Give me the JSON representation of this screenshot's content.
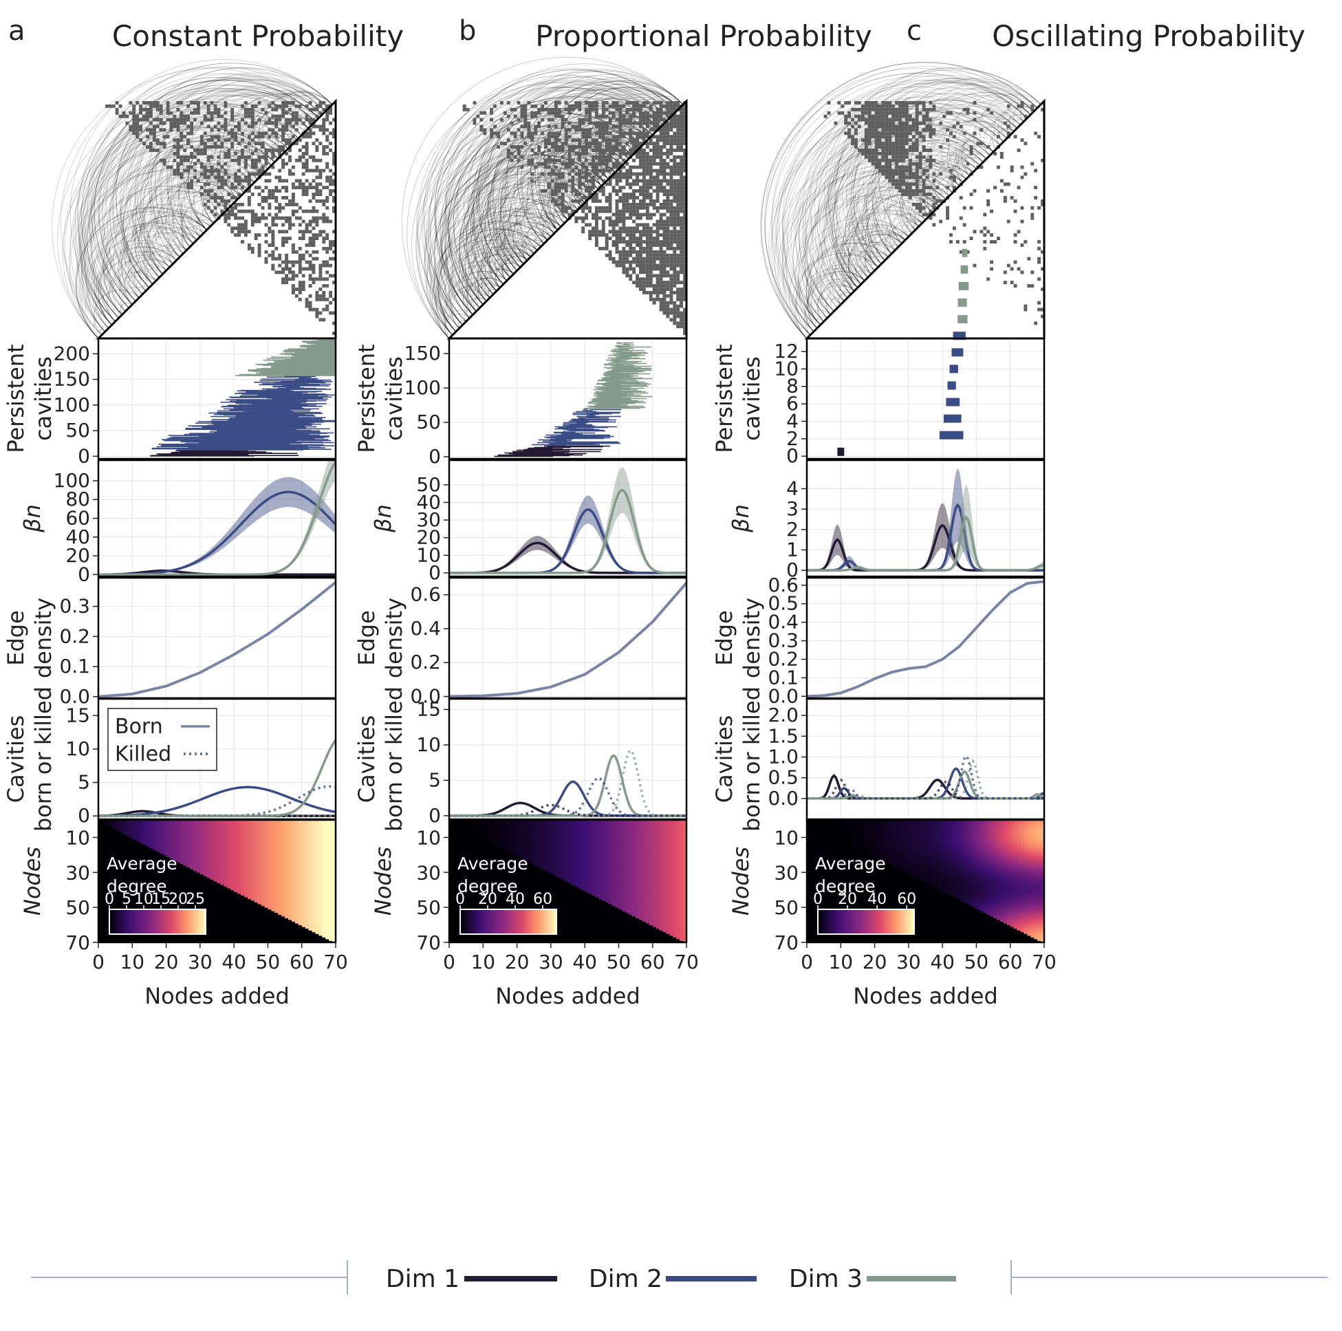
{
  "figure": {
    "panels": [
      {
        "letter": "a",
        "title": "Constant Probability"
      },
      {
        "letter": "b",
        "title": "Proportional Probability"
      },
      {
        "letter": "c",
        "title": "Oscillating Probability"
      }
    ],
    "row_labels": {
      "persistent": [
        "Persistent",
        "cavities"
      ],
      "betti": "βn",
      "edge": [
        "Edge",
        "density"
      ],
      "born": [
        "Cavities",
        "born or killed"
      ],
      "nodes": "Nodes"
    },
    "xlabel": "Nodes added",
    "x_ticks": [
      "0",
      "10",
      "20",
      "30",
      "40",
      "50",
      "60",
      "70"
    ],
    "node_ticks": [
      "10",
      "30",
      "50",
      "70"
    ],
    "colorbar_title": [
      "Average",
      "degree"
    ],
    "inset_legend": {
      "born": "Born",
      "killed": "Killed"
    },
    "dim_legend": [
      {
        "label": "Dim 1",
        "color": "#231a33"
      },
      {
        "label": "Dim 2",
        "color": "#3b4c85"
      },
      {
        "label": "Dim 3",
        "color": "#849a8b"
      }
    ]
  },
  "chart_data": [
    {
      "type": "composite",
      "title": "Constant Probability",
      "panel": "a",
      "x_range": [
        0,
        70
      ],
      "persistent_cavities": {
        "ylim": [
          -5,
          230
        ],
        "yticks": [
          "0",
          "50",
          "100",
          "150",
          "200"
        ],
        "bars": [
          {
            "dim": 1,
            "count": 12,
            "start_range": [
              10,
              30
            ],
            "end_range": [
              36,
              60
            ]
          },
          {
            "dim": 2,
            "count": 145,
            "start_range": [
              14,
              62
            ],
            "end_range": [
              55,
              70
            ]
          },
          {
            "dim": 3,
            "count": 70,
            "start_range": [
              40,
              68
            ],
            "end_range": [
              70,
              70
            ]
          }
        ]
      },
      "betti": {
        "ylim": [
          -2,
          122
        ],
        "yticks": [
          "0",
          "20",
          "40",
          "60",
          "80",
          "100"
        ],
        "series": [
          {
            "name": "Dim 1",
            "peak_x": 19,
            "peak_y": 4,
            "width": 6,
            "band": 1.5
          },
          {
            "name": "Dim 2",
            "peak_x": 56,
            "peak_y": 88,
            "width": 14,
            "band": 16
          },
          {
            "name": "Dim 3",
            "peak_x": 72,
            "peak_y": 125,
            "width": 7,
            "band": 20
          }
        ]
      },
      "edge_density": {
        "ylim": [
          -0.005,
          0.395
        ],
        "yticks": [
          "0.0",
          "0.1",
          "0.2",
          "0.3"
        ],
        "points": [
          [
            0,
            0.0
          ],
          [
            10,
            0.009
          ],
          [
            20,
            0.035
          ],
          [
            30,
            0.08
          ],
          [
            40,
            0.14
          ],
          [
            50,
            0.208
          ],
          [
            60,
            0.29
          ],
          [
            70,
            0.38
          ]
        ]
      },
      "born_killed": {
        "ylim": [
          -0.5,
          17.5
        ],
        "yticks": [
          "0",
          "5",
          "10",
          "15"
        ],
        "born": [
          {
            "name": "Dim 1",
            "peak_x": 13,
            "peak_y": 0.7,
            "width": 4.5
          },
          {
            "name": "Dim 2",
            "peak_x": 44,
            "peak_y": 4.3,
            "width": 13
          },
          {
            "name": "Dim 3",
            "peak_x": 72,
            "peak_y": 12,
            "width": 6
          }
        ],
        "killed": [
          {
            "name": "Dim 1",
            "peak_x": 40,
            "peak_y": 0.05,
            "width": 12
          },
          {
            "name": "Dim 2",
            "peak_x": 68,
            "peak_y": 4.4,
            "width": 9
          },
          {
            "name": "Dim 3",
            "peak_x": 80,
            "peak_y": 2,
            "width": 3
          }
        ]
      },
      "average_degree": {
        "colorbar_ticks": [
          "0",
          "5",
          "10",
          "15",
          "20",
          "25"
        ],
        "vmax": 28,
        "max_degree": 27,
        "profile": "constant"
      }
    },
    {
      "type": "composite",
      "title": "Proportional Probability",
      "panel": "b",
      "x_range": [
        0,
        70
      ],
      "persistent_cavities": {
        "ylim": [
          -3,
          172
        ],
        "yticks": [
          "0",
          "50",
          "100",
          "150"
        ],
        "bars": [
          {
            "dim": 1,
            "count": 16,
            "start_range": [
              12,
              30
            ],
            "end_range": [
              30,
              48
            ]
          },
          {
            "dim": 2,
            "count": 54,
            "start_range": [
              24,
              44
            ],
            "end_range": [
              34,
              52
            ]
          },
          {
            "dim": 3,
            "count": 96,
            "start_range": [
              40,
              52
            ],
            "end_range": [
              50,
              60
            ]
          }
        ]
      },
      "betti": {
        "ylim": [
          -2,
          64
        ],
        "yticks": [
          "0",
          "10",
          "20",
          "30",
          "40",
          "50"
        ],
        "series": [
          {
            "name": "Dim 1",
            "peak_x": 26,
            "peak_y": 17,
            "width": 5.5,
            "band": 4
          },
          {
            "name": "Dim 2",
            "peak_x": 41,
            "peak_y": 36,
            "width": 4.3,
            "band": 8
          },
          {
            "name": "Dim 3",
            "peak_x": 51,
            "peak_y": 47,
            "width": 3.6,
            "band": 13
          }
        ]
      },
      "edge_density": {
        "ylim": [
          -0.01,
          0.7
        ],
        "yticks": [
          "0.0",
          "0.2",
          "0.4",
          "0.6"
        ],
        "points": [
          [
            0,
            0.0
          ],
          [
            10,
            0.004
          ],
          [
            20,
            0.018
          ],
          [
            30,
            0.056
          ],
          [
            40,
            0.13
          ],
          [
            50,
            0.26
          ],
          [
            60,
            0.44
          ],
          [
            70,
            0.67
          ]
        ]
      },
      "born_killed": {
        "ylim": [
          -0.5,
          16.5
        ],
        "yticks": [
          "0",
          "5",
          "10",
          "15"
        ],
        "born": [
          {
            "name": "Dim 1",
            "peak_x": 21,
            "peak_y": 1.8,
            "width": 4.2
          },
          {
            "name": "Dim 2",
            "peak_x": 36.5,
            "peak_y": 4.8,
            "width": 3.2
          },
          {
            "name": "Dim 3",
            "peak_x": 48.5,
            "peak_y": 8.5,
            "width": 2.5
          }
        ],
        "killed": [
          {
            "name": "Dim 1",
            "peak_x": 30,
            "peak_y": 1.5,
            "width": 4
          },
          {
            "name": "Dim 2",
            "peak_x": 44,
            "peak_y": 5.3,
            "width": 3
          },
          {
            "name": "Dim 3",
            "peak_x": 53.5,
            "peak_y": 9.2,
            "width": 2.3
          }
        ]
      },
      "average_degree": {
        "colorbar_ticks": [
          "0",
          "20",
          "40",
          "60"
        ],
        "vmax": 70,
        "max_degree": 47,
        "profile": "proportional"
      }
    },
    {
      "type": "composite",
      "title": "Oscillating Probability",
      "panel": "c",
      "x_range": [
        0,
        70
      ],
      "persistent_cavities": {
        "ylim": [
          -0.3,
          13.5
        ],
        "yticks": [
          "0",
          "2",
          "4",
          "6",
          "8",
          "10",
          "12"
        ],
        "bars": [
          {
            "dim": 1,
            "count": 1,
            "start_range": [
              9,
              9
            ],
            "end_range": [
              11,
              11
            ]
          },
          {
            "dim": 2,
            "count": 7,
            "start_range": [
              39,
              44
            ],
            "end_range": [
              43,
              47
            ]
          },
          {
            "dim": 3,
            "count": 5,
            "start_range": [
              44,
              46
            ],
            "end_range": [
              47,
              48
            ]
          }
        ]
      },
      "betti": {
        "ylim": [
          -0.3,
          5.4
        ],
        "yticks": [
          "0",
          "1",
          "2",
          "3",
          "4"
        ],
        "series": [
          {
            "name": "Dim 1",
            "peaks": [
              [
                9,
                1.5,
                1.7
              ],
              [
                40,
                2.2,
                2.3
              ]
            ],
            "band": 1.1
          },
          {
            "name": "Dim 2",
            "peaks": [
              [
                12.5,
                0.45,
                1.6
              ],
              [
                44.5,
                3.2,
                1.9
              ]
            ],
            "band": 1.8
          },
          {
            "name": "Dim 3",
            "peaks": [
              [
                15,
                0.15,
                1.6
              ],
              [
                47,
                2.6,
                1.7
              ],
              [
                70,
                0.25,
                2
              ]
            ],
            "band": 1.6
          }
        ]
      },
      "edge_density": {
        "ylim": [
          -0.01,
          0.64
        ],
        "yticks": [
          "0.0",
          "0.1",
          "0.2",
          "0.3",
          "0.4",
          "0.5",
          "0.6"
        ],
        "points": [
          [
            0,
            0.0
          ],
          [
            5,
            0.004
          ],
          [
            10,
            0.018
          ],
          [
            15,
            0.052
          ],
          [
            20,
            0.095
          ],
          [
            25,
            0.13
          ],
          [
            30,
            0.15
          ],
          [
            35,
            0.16
          ],
          [
            40,
            0.2
          ],
          [
            45,
            0.27
          ],
          [
            50,
            0.37
          ],
          [
            55,
            0.47
          ],
          [
            60,
            0.56
          ],
          [
            65,
            0.61
          ],
          [
            70,
            0.62
          ]
        ]
      },
      "born_killed": {
        "ylim": [
          -0.5,
          2.4
        ],
        "yticks": [
          "0.0",
          "0.5",
          "1.0",
          "1.5",
          "2.0"
        ],
        "born": [
          {
            "name": "Dim 1",
            "peaks": [
              [
                8,
                0.55,
                1.3
              ],
              [
                38.5,
                0.45,
                2.2
              ]
            ]
          },
          {
            "name": "Dim 2",
            "peaks": [
              [
                11,
                0.25,
                1.2
              ],
              [
                44,
                0.72,
                1.8
              ],
              [
                69.5,
                0.12,
                0.8
              ]
            ]
          },
          {
            "name": "Dim 3",
            "peaks": [
              [
                13.5,
                0.08,
                1.2
              ],
              [
                46.5,
                0.65,
                1.6
              ],
              [
                68,
                0.1,
                1
              ]
            ]
          }
        ],
        "killed": [
          {
            "name": "Dim 1",
            "peaks": [
              [
                10,
                0.45,
                1.4
              ],
              [
                41,
                0.4,
                1.8
              ]
            ]
          },
          {
            "name": "Dim 2",
            "peaks": [
              [
                13,
                0.22,
                1.3
              ],
              [
                47,
                1.02,
                1.5
              ]
            ]
          },
          {
            "name": "Dim 3",
            "peaks": [
              [
                16,
                0.05,
                1.2
              ],
              [
                49,
                0.9,
                1.4
              ]
            ]
          }
        ]
      },
      "average_degree": {
        "colorbar_ticks": [
          "0",
          "20",
          "40",
          "60"
        ],
        "vmax": 65,
        "max_degree": 62,
        "profile": "oscillating"
      }
    }
  ]
}
